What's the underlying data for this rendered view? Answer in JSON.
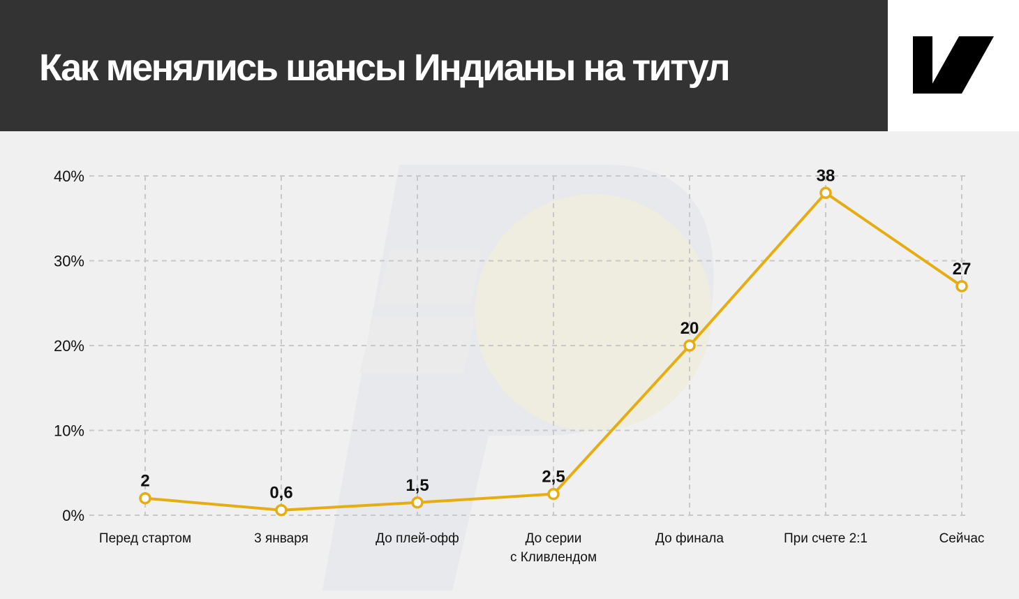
{
  "header": {
    "title": "Как менялись шансы Индианы на титул"
  },
  "icons": {
    "brand_logo": "publisher-logo-icon",
    "watermark": "team-logo-watermark"
  },
  "colors": {
    "header_bg": "#333333",
    "background": "#f0f0f0",
    "line": "#e6ad12",
    "marker_fill": "#ffffff",
    "grid": "#c8c8c8",
    "text": "#111111"
  },
  "chart_data": {
    "type": "line",
    "title": "Как менялись шансы Индианы на титул",
    "categories": [
      "Перед стартом",
      "3 января",
      "До плей-офф",
      "До серии с Кливлендом",
      "До финала",
      "При счете 2:1",
      "Сейчас"
    ],
    "category_lines": [
      [
        "Перед стартом"
      ],
      [
        "3 января"
      ],
      [
        "До плей-офф"
      ],
      [
        "До серии",
        "с Кливлендом"
      ],
      [
        "До финала"
      ],
      [
        "При счете 2:1"
      ],
      [
        "Сейчас"
      ]
    ],
    "values": [
      2,
      0.6,
      1.5,
      2.5,
      20,
      38,
      27
    ],
    "data_labels": [
      "2",
      "0,6",
      "1,5",
      "2,5",
      "20",
      "38",
      "27"
    ],
    "y_ticks": [
      0,
      10,
      20,
      30,
      40
    ],
    "y_tick_labels": [
      "0%",
      "10%",
      "20%",
      "30%",
      "40%"
    ],
    "ylim": [
      0,
      40
    ],
    "grid": true,
    "legend": "none"
  }
}
